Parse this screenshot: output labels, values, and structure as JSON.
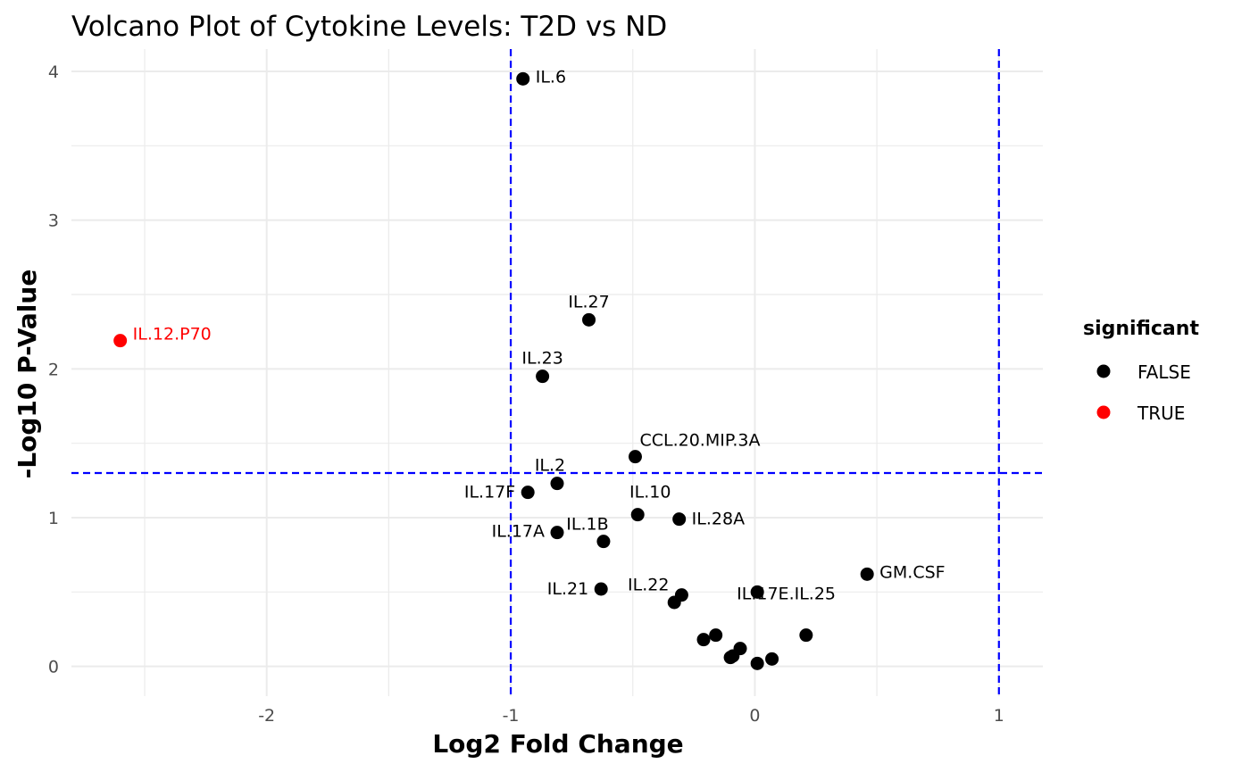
{
  "chart_data": {
    "type": "scatter",
    "title": "Volcano Plot of Cytokine Levels: T2D vs ND",
    "xlabel": "Log2 Fold Change",
    "ylabel": "-Log10 P-Value",
    "xlim": [
      -2.8,
      1.18
    ],
    "ylim": [
      -0.2,
      4.15
    ],
    "x_ticks": [
      -2,
      -1,
      0,
      1
    ],
    "y_ticks": [
      0,
      1,
      2,
      3,
      4
    ],
    "grid": true,
    "thresholds": {
      "x": [
        -1,
        1
      ],
      "y": 1.3,
      "color": "#0000ff",
      "style": "dashed"
    },
    "legend": {
      "title": "significant",
      "position": "right",
      "entries": [
        {
          "label": "FALSE",
          "color": "#000000"
        },
        {
          "label": "TRUE",
          "color": "#ff0000"
        }
      ]
    },
    "points": [
      {
        "x": -2.6,
        "y": 2.19,
        "label": "IL.12.P70",
        "significant": true
      },
      {
        "x": -0.95,
        "y": 3.95,
        "label": "IL.6",
        "significant": false
      },
      {
        "x": -0.68,
        "y": 2.33,
        "label": "IL.27",
        "significant": false
      },
      {
        "x": -0.87,
        "y": 1.95,
        "label": "IL.23",
        "significant": false
      },
      {
        "x": -0.49,
        "y": 1.41,
        "label": "CCL.20.MIP.3A",
        "significant": false
      },
      {
        "x": -0.81,
        "y": 1.23,
        "label": "IL.2",
        "significant": false
      },
      {
        "x": -0.93,
        "y": 1.17,
        "label": "IL.17F",
        "significant": false
      },
      {
        "x": -0.48,
        "y": 1.02,
        "label": "IL.10",
        "significant": false
      },
      {
        "x": -0.31,
        "y": 0.99,
        "label": "IL.28A",
        "significant": false
      },
      {
        "x": -0.81,
        "y": 0.9,
        "label": "IL.17A",
        "significant": false
      },
      {
        "x": -0.62,
        "y": 0.84,
        "label": "IL.1B",
        "significant": false
      },
      {
        "x": 0.46,
        "y": 0.62,
        "label": "GM.CSF",
        "significant": false
      },
      {
        "x": 0.01,
        "y": 0.5,
        "label": "IL.17E.IL.25",
        "significant": false
      },
      {
        "x": -0.63,
        "y": 0.52,
        "label": "IL.21",
        "significant": false
      },
      {
        "x": -0.3,
        "y": 0.48,
        "label": "IL.22",
        "significant": false
      },
      {
        "x": -0.33,
        "y": 0.43,
        "label": "",
        "significant": false
      },
      {
        "x": 0.21,
        "y": 0.21,
        "label": "",
        "significant": false
      },
      {
        "x": -0.16,
        "y": 0.21,
        "label": "",
        "significant": false
      },
      {
        "x": -0.21,
        "y": 0.18,
        "label": "",
        "significant": false
      },
      {
        "x": -0.06,
        "y": 0.12,
        "label": "",
        "significant": false
      },
      {
        "x": -0.09,
        "y": 0.07,
        "label": "",
        "significant": false
      },
      {
        "x": -0.1,
        "y": 0.06,
        "label": "",
        "significant": false
      },
      {
        "x": 0.07,
        "y": 0.05,
        "label": "",
        "significant": false
      },
      {
        "x": 0.01,
        "y": 0.02,
        "label": "",
        "significant": false
      }
    ]
  }
}
